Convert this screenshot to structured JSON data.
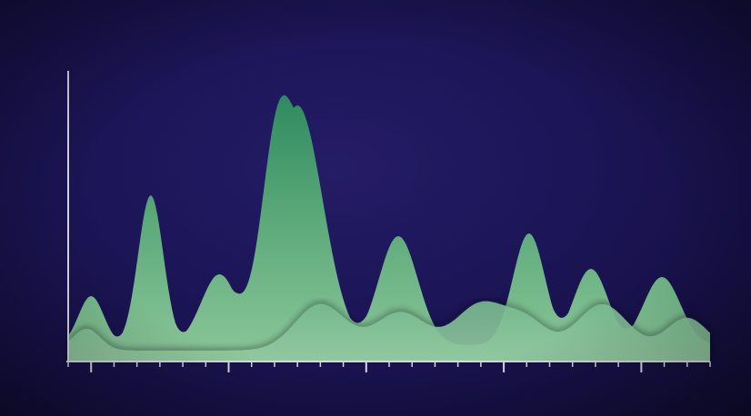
{
  "chart_data": {
    "type": "area",
    "title": "",
    "xlabel": "",
    "ylabel": "",
    "grid": false,
    "xlim": [
      0,
      28
    ],
    "ylim": [
      0,
      100
    ],
    "x_major_ticks": [
      1,
      7,
      13,
      19,
      25
    ],
    "x_minor_ticks": [
      0,
      1,
      2,
      3,
      4,
      5,
      6,
      7,
      8,
      9,
      10,
      11,
      12,
      13,
      14,
      15,
      16,
      17,
      18,
      19,
      20,
      21,
      22,
      23,
      24,
      25,
      26,
      27,
      28
    ],
    "series": [
      {
        "color": "#3c9a72",
        "peaks": [
          {
            "x": 1.0,
            "y": 18,
            "w": 0.55
          },
          {
            "x": 3.6,
            "y": 55,
            "w": 0.55
          },
          {
            "x": 6.6,
            "y": 26,
            "w": 0.8
          },
          {
            "x": 9.0,
            "y": 40,
            "w": 0.6
          },
          {
            "x": 10.0,
            "y": 88,
            "w": 1.1
          },
          {
            "x": 14.4,
            "y": 40,
            "w": 0.85
          },
          {
            "x": 20.1,
            "y": 41,
            "w": 0.7
          },
          {
            "x": 22.8,
            "y": 28,
            "w": 0.75
          },
          {
            "x": 25.9,
            "y": 25,
            "w": 0.8
          }
        ],
        "base": 0
      },
      {
        "color": "#7fbf98",
        "waves": [
          {
            "x": 11.0,
            "y": 17,
            "w": 1.1
          },
          {
            "x": 14.5,
            "y": 14,
            "w": 1.1
          },
          {
            "x": 18.0,
            "y": 17,
            "w": 1.1
          },
          {
            "x": 20.0,
            "y": 10,
            "w": 0.9
          },
          {
            "x": 23.3,
            "y": 17,
            "w": 1.1
          },
          {
            "x": 27.0,
            "y": 12,
            "w": 0.9
          }
        ],
        "base": 4
      }
    ]
  }
}
